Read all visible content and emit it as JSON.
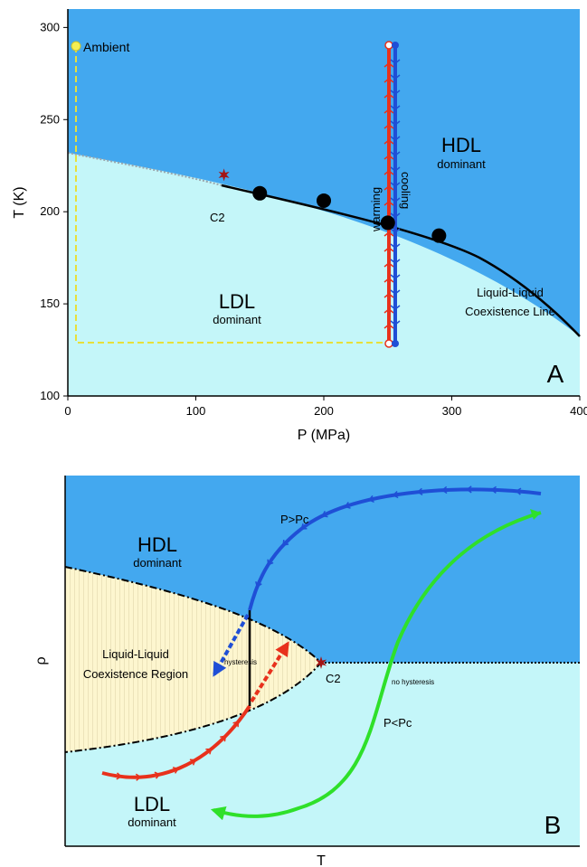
{
  "panel_a": {
    "chart_data": {
      "type": "line",
      "xlabel": "P (MPa)",
      "ylabel": "T (K)",
      "xlim": [
        0,
        400
      ],
      "ylim": [
        100,
        310
      ],
      "xticks": [
        "0",
        "100",
        "200",
        "300",
        "400"
      ],
      "yticks": [
        "100",
        "150",
        "200",
        "250",
        "300"
      ],
      "series": [
        {
          "name": "Liquid-Liquid Coexistence Line",
          "x": [
            0,
            100,
            150,
            200,
            250,
            300,
            350,
            400
          ],
          "y": [
            240,
            223,
            214,
            204,
            193,
            180,
            162,
            134
          ]
        },
        {
          "name": "warming",
          "x": [
            250,
            250
          ],
          "y": [
            130,
            300
          ]
        },
        {
          "name": "cooling",
          "x": [
            255,
            255
          ],
          "y": [
            300,
            130
          ]
        }
      ],
      "points": [
        {
          "x": 150,
          "y": 210
        },
        {
          "x": 200,
          "y": 206
        },
        {
          "x": 250,
          "y": 194
        },
        {
          "x": 290,
          "y": 187
        }
      ],
      "critical_point": {
        "x": 122,
        "y": 220
      },
      "ambient_point": {
        "x": 5,
        "y": 300
      }
    },
    "labels": {
      "ambient": "Ambient",
      "c2": "C2",
      "hdl": "HDL",
      "hdl_sub": "dominant",
      "ldl": "LDL",
      "ldl_sub": "dominant",
      "warming": "warming",
      "cooling": "cooling",
      "coex_line_1": "Liquid-Liquid",
      "coex_line_2": "Coexistence Line",
      "panel": "A"
    },
    "colors": {
      "hdl": "#43a8ef",
      "ldl": "#c4f6f9",
      "warming": "#e8311c",
      "cooling": "#1f4fd6",
      "path": "#e8e03a"
    }
  },
  "panel_b": {
    "labels": {
      "hdl": "HDL",
      "hdl_sub": "dominant",
      "ldl": "LDL",
      "ldl_sub": "dominant",
      "region_1": "Liquid-Liquid",
      "region_2": "Coexistence Region",
      "hysteresis": "hysteresis",
      "no_hysteresis": "no hysteresis",
      "c2": "C2",
      "p_gt": "P>Pc",
      "p_lt": "P<Pc",
      "xlabel": "T",
      "ylabel": "ρ",
      "panel": "B"
    },
    "colors": {
      "hdl": "#43a8ef",
      "ldl": "#c4f6f9",
      "region": "#fdf6cf",
      "high_p": "#1f4fd6",
      "low_p_red": "#e8311c",
      "green": "#2fe02a"
    }
  }
}
